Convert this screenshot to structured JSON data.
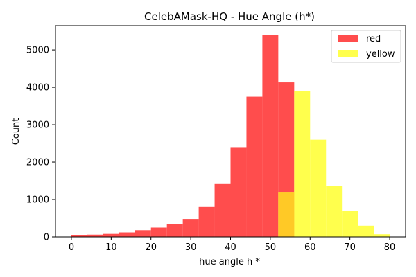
{
  "chart_data": {
    "type": "bar",
    "title": "CelebAMask-HQ - Hue Angle (h*)",
    "xlabel": "hue angle h *",
    "ylabel": "Count",
    "xlim": [
      -4,
      84
    ],
    "ylim": [
      0,
      5650
    ],
    "x_ticks": [
      0,
      10,
      20,
      30,
      40,
      50,
      60,
      70,
      80
    ],
    "y_ticks": [
      0,
      1000,
      2000,
      3000,
      4000,
      5000
    ],
    "bin_width": 4,
    "grid": false,
    "legend_position": "top-right",
    "overlap_color": "#ffc926",
    "series": [
      {
        "name": "red",
        "color": "#ff4d4d",
        "bins": [
          {
            "x0": 0,
            "x1": 4,
            "value": 40
          },
          {
            "x0": 4,
            "x1": 8,
            "value": 60
          },
          {
            "x0": 8,
            "x1": 12,
            "value": 80
          },
          {
            "x0": 12,
            "x1": 16,
            "value": 120
          },
          {
            "x0": 16,
            "x1": 20,
            "value": 180
          },
          {
            "x0": 20,
            "x1": 24,
            "value": 250
          },
          {
            "x0": 24,
            "x1": 28,
            "value": 350
          },
          {
            "x0": 28,
            "x1": 32,
            "value": 480
          },
          {
            "x0": 32,
            "x1": 36,
            "value": 800
          },
          {
            "x0": 36,
            "x1": 40,
            "value": 1430
          },
          {
            "x0": 40,
            "x1": 44,
            "value": 2400
          },
          {
            "x0": 44,
            "x1": 48,
            "value": 3750
          },
          {
            "x0": 48,
            "x1": 52,
            "value": 5400
          },
          {
            "x0": 52,
            "x1": 56,
            "value": 4130
          }
        ]
      },
      {
        "name": "yellow",
        "color": "#ffff4d",
        "bins": [
          {
            "x0": 52,
            "x1": 56,
            "value": 1200
          },
          {
            "x0": 56,
            "x1": 60,
            "value": 3900
          },
          {
            "x0": 60,
            "x1": 64,
            "value": 2600
          },
          {
            "x0": 64,
            "x1": 68,
            "value": 1360
          },
          {
            "x0": 68,
            "x1": 72,
            "value": 700
          },
          {
            "x0": 72,
            "x1": 76,
            "value": 300
          },
          {
            "x0": 76,
            "x1": 80,
            "value": 70
          }
        ]
      }
    ]
  }
}
